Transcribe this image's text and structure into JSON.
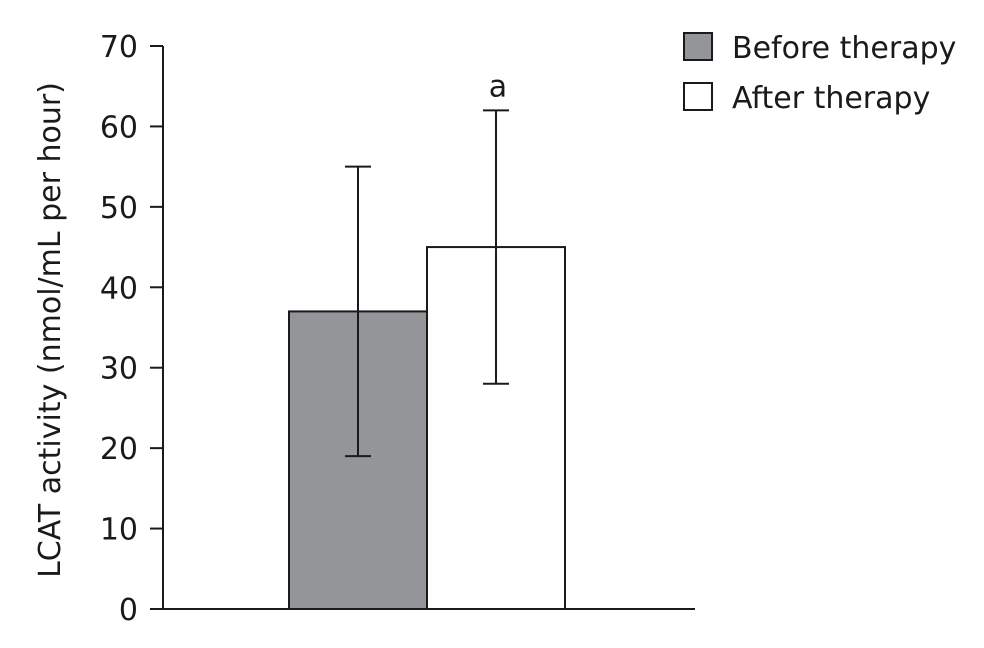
{
  "chart_data": {
    "type": "bar",
    "title": "",
    "xlabel": "",
    "ylabel": "LCAT activity (nmol/mL per hour)",
    "ylim": [
      0,
      70
    ],
    "yticks": [
      "0",
      "10",
      "20",
      "30",
      "40",
      "50",
      "60",
      "70"
    ],
    "grid": false,
    "legend_position": "top-right",
    "series": [
      {
        "name": "Before therapy",
        "value": 37,
        "error_low": 19,
        "error_high": 55,
        "color": "#939598",
        "annotation": ""
      },
      {
        "name": "After therapy",
        "value": 45,
        "error_low": 28,
        "error_high": 62,
        "color": "#ffffff",
        "annotation": "a"
      }
    ]
  }
}
